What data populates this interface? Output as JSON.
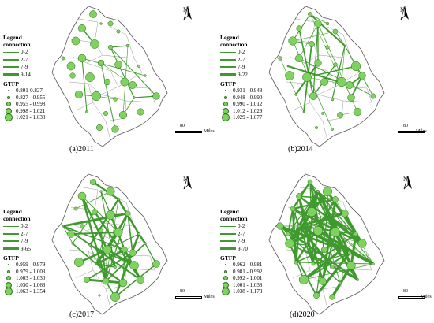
{
  "panels": [
    {
      "caption": "(a)2011",
      "legend": {
        "title_line1": "Legend",
        "title_line2": "connection",
        "connection_classes": [
          "0-2",
          "2-7",
          "7-9",
          "9-14"
        ],
        "gtfp_title": "GTFP",
        "gtfp_classes": [
          "0.801-0.827",
          "0.827 - 0.955",
          "0.955 - 0.998",
          "0.998 - 1.021",
          "1.021 - 1.038"
        ]
      },
      "scale_label": "80",
      "scale_unit": "Miles",
      "north_label": "N"
    },
    {
      "caption": "(b)2014",
      "legend": {
        "title_line1": "Legend",
        "title_line2": "connection",
        "connection_classes": [
          "0-2",
          "2-7",
          "7-9",
          "9-22"
        ],
        "gtfp_title": "GTFP",
        "gtfp_classes": [
          "0.931 - 0.948",
          "0.948 - 0.990",
          "0.990 - 1.012",
          "1.012 - 1.029",
          "1.029 - 1.077"
        ]
      },
      "scale_label": "80",
      "scale_unit": "Miles",
      "north_label": "N"
    },
    {
      "caption": "(c)2017",
      "legend": {
        "title_line1": "Legend",
        "title_line2": "connection",
        "connection_classes": [
          "0-2",
          "2-7",
          "7-9",
          "9-65"
        ],
        "gtfp_title": "GTFP",
        "gtfp_classes": [
          "0.959 - 0.979",
          "0.979 - 1.003",
          "1.003 - 1.030",
          "1.030 - 1.063",
          "1.063 - 1.354"
        ]
      },
      "scale_label": "80",
      "scale_unit": "Miles",
      "north_label": "N"
    },
    {
      "caption": "(d)2020",
      "legend": {
        "title_line1": "Legend",
        "title_line2": "connection",
        "connection_classes": [
          "0-2",
          "2-7",
          "7-9",
          "9-70"
        ],
        "gtfp_title": "GTFP",
        "gtfp_classes": [
          "0.962 - 0.981",
          "0.981 - 0.992",
          "0.992 - 1.001",
          "1.001 - 1.038",
          "1.038 - 1.178"
        ]
      },
      "scale_label": "80",
      "scale_unit": "Miles",
      "north_label": "N"
    }
  ],
  "colors": {
    "line": "#3f9a2e",
    "node_fill": "#7ed35f",
    "node_stroke": "#2f6b1f",
    "boundary": "#555555"
  }
}
